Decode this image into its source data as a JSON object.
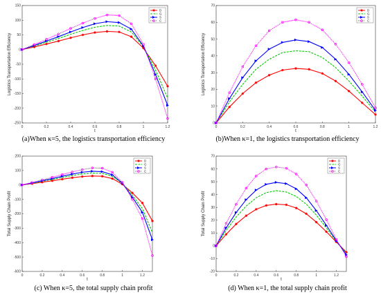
{
  "chart_data": [
    {
      "type": "line",
      "caption": "(a)When κ=5, the logistics transportation efficiency",
      "xlabel": "t",
      "ylabel": "Logistics Transportation Efficiency",
      "xlim": [
        0,
        1.2
      ],
      "ylim": [
        -250,
        150
      ],
      "xticks": [
        "0",
        "0.2",
        "0.4",
        "0.6",
        "0.8",
        "1",
        "1.2"
      ],
      "yticks": [
        "150",
        "100",
        "50",
        "0",
        "-50",
        "-100",
        "-150",
        "-200",
        "-250"
      ],
      "legend": [
        "D",
        "G",
        "S",
        "C"
      ],
      "legend_position": "top-right",
      "series": [
        {
          "name": "D",
          "color": "#ff0000",
          "marker": "star",
          "x": [
            0,
            0.1,
            0.2,
            0.3,
            0.4,
            0.5,
            0.6,
            0.7,
            0.8,
            0.9,
            1.0,
            1.1,
            1.2
          ],
          "y": [
            0,
            9,
            19,
            29,
            40,
            50,
            58,
            62,
            60,
            44,
            5,
            -55,
            -125
          ]
        },
        {
          "name": "G",
          "color": "#00cc00",
          "marker": "dash",
          "x": [
            0,
            0.1,
            0.2,
            0.3,
            0.4,
            0.5,
            0.6,
            0.7,
            0.8,
            0.9,
            1.0,
            1.1,
            1.2
          ],
          "y": [
            0,
            12,
            25,
            38,
            52,
            65,
            76,
            82,
            80,
            60,
            10,
            -70,
            -165
          ]
        },
        {
          "name": "S",
          "color": "#0000ff",
          "marker": "triangle",
          "x": [
            0,
            0.1,
            0.2,
            0.3,
            0.4,
            0.5,
            0.6,
            0.7,
            0.8,
            0.9,
            1.0,
            1.1,
            1.2
          ],
          "y": [
            0,
            14,
            29,
            44,
            60,
            75,
            88,
            95,
            92,
            70,
            12,
            -85,
            -190
          ]
        },
        {
          "name": "C",
          "color": "#ff00ff",
          "marker": "circle",
          "x": [
            0,
            0.1,
            0.2,
            0.3,
            0.4,
            0.5,
            0.6,
            0.7,
            0.8,
            0.9,
            1.0,
            1.1,
            1.2
          ],
          "y": [
            0,
            17,
            35,
            53,
            72,
            90,
            106,
            118,
            116,
            88,
            18,
            -100,
            -235
          ]
        }
      ]
    },
    {
      "type": "line",
      "caption": "(b)When κ=1, the logistics transportation efficiency",
      "xlabel": "t",
      "ylabel": "Logistics Transportation Efficiency",
      "xlim": [
        0,
        1.2
      ],
      "ylim": [
        0,
        70
      ],
      "xticks": [
        "0",
        "0.2",
        "0.4",
        "0.6",
        "0.8",
        "1",
        "1.2"
      ],
      "yticks": [
        "70",
        "60",
        "50",
        "40",
        "30",
        "20",
        "10",
        "0"
      ],
      "legend": [
        "D",
        "G",
        "S",
        "C"
      ],
      "legend_position": "top-right",
      "series": [
        {
          "name": "D",
          "color": "#ff0000",
          "marker": "star",
          "x": [
            0,
            0.1,
            0.2,
            0.3,
            0.4,
            0.5,
            0.6,
            0.7,
            0.8,
            0.9,
            1.0,
            1.1,
            1.2
          ],
          "y": [
            0,
            9.5,
            17.5,
            24,
            28.5,
            31.5,
            32.5,
            32,
            29.5,
            25,
            19,
            12,
            5
          ]
        },
        {
          "name": "G",
          "color": "#00cc00",
          "marker": "dash",
          "x": [
            0,
            0.1,
            0.2,
            0.3,
            0.4,
            0.5,
            0.6,
            0.7,
            0.8,
            0.9,
            1.0,
            1.1,
            1.2
          ],
          "y": [
            0,
            12.5,
            23,
            32,
            38,
            42,
            43,
            42.5,
            39,
            33,
            25,
            16,
            6.5
          ]
        },
        {
          "name": "S",
          "color": "#0000ff",
          "marker": "triangle",
          "x": [
            0,
            0.1,
            0.2,
            0.3,
            0.4,
            0.5,
            0.6,
            0.7,
            0.8,
            0.9,
            1.0,
            1.1,
            1.2
          ],
          "y": [
            0,
            14.5,
            27,
            37,
            44,
            48,
            49.5,
            48.5,
            45,
            38,
            29,
            18.5,
            7.5
          ]
        },
        {
          "name": "C",
          "color": "#ff00ff",
          "marker": "circle",
          "x": [
            0,
            0.1,
            0.2,
            0.3,
            0.4,
            0.5,
            0.6,
            0.7,
            0.8,
            0.9,
            1.0,
            1.1,
            1.2
          ],
          "y": [
            0,
            18,
            33.5,
            46,
            55,
            60,
            61.5,
            60,
            55.5,
            47,
            36,
            23,
            9
          ]
        }
      ]
    },
    {
      "type": "line",
      "caption": "(c) When κ=5, the total supply chain profit",
      "xlabel": "t",
      "ylabel": "Total Supply Chain Profit",
      "xlim": [
        0,
        1.3
      ],
      "ylim": [
        -600,
        200
      ],
      "xticks": [
        "0",
        "0.2",
        "0.4",
        "0.6",
        "0.8",
        "1",
        "1.2"
      ],
      "yticks": [
        "200",
        "100",
        "0",
        "-100",
        "-200",
        "-300",
        "-400",
        "-500",
        "-600"
      ],
      "legend": [
        "D",
        "G",
        "S",
        "C"
      ],
      "legend_position": "top-right",
      "series": [
        {
          "name": "D",
          "color": "#ff0000",
          "marker": "star",
          "x": [
            0,
            0.1,
            0.2,
            0.3,
            0.4,
            0.5,
            0.6,
            0.7,
            0.8,
            0.9,
            1.0,
            1.1,
            1.2,
            1.3
          ],
          "y": [
            0,
            9,
            19,
            29,
            40,
            50,
            58,
            62,
            60,
            44,
            5,
            -55,
            -125,
            -250
          ]
        },
        {
          "name": "G",
          "color": "#00cc00",
          "marker": "dash",
          "x": [
            0,
            0.1,
            0.2,
            0.3,
            0.4,
            0.5,
            0.6,
            0.7,
            0.8,
            0.9,
            1.0,
            1.1,
            1.2,
            1.3
          ],
          "y": [
            0,
            12,
            25,
            38,
            52,
            65,
            76,
            82,
            80,
            60,
            10,
            -70,
            -165,
            -330
          ]
        },
        {
          "name": "S",
          "color": "#0000ff",
          "marker": "triangle",
          "x": [
            0,
            0.1,
            0.2,
            0.3,
            0.4,
            0.5,
            0.6,
            0.7,
            0.8,
            0.9,
            1.0,
            1.1,
            1.2,
            1.3
          ],
          "y": [
            0,
            14,
            29,
            44,
            60,
            75,
            88,
            95,
            92,
            70,
            12,
            -85,
            -190,
            -380
          ]
        },
        {
          "name": "C",
          "color": "#ff00ff",
          "marker": "circle",
          "x": [
            0,
            0.1,
            0.2,
            0.3,
            0.4,
            0.5,
            0.6,
            0.7,
            0.8,
            0.9,
            1.0,
            1.1,
            1.2,
            1.3
          ],
          "y": [
            0,
            17,
            35,
            53,
            72,
            90,
            106,
            118,
            116,
            88,
            18,
            -100,
            -235,
            -490
          ]
        }
      ]
    },
    {
      "type": "line",
      "caption": "(d) When κ=1, the total supply chain profit",
      "xlabel": "t",
      "ylabel": "Total Supply Chain Profit",
      "xlim": [
        0,
        1.3
      ],
      "ylim": [
        -20,
        70
      ],
      "xticks": [
        "0",
        "0.2",
        "0.4",
        "0.6",
        "0.8",
        "1",
        "1.2"
      ],
      "yticks": [
        "70",
        "60",
        "50",
        "40",
        "30",
        "20",
        "10",
        "0",
        "-10",
        "-20"
      ],
      "legend": [
        "D",
        "G",
        "S",
        "C"
      ],
      "legend_position": "top-right",
      "series": [
        {
          "name": "D",
          "color": "#ff0000",
          "marker": "star",
          "x": [
            0,
            0.1,
            0.2,
            0.3,
            0.4,
            0.5,
            0.6,
            0.7,
            0.8,
            0.9,
            1.0,
            1.1,
            1.2,
            1.3
          ],
          "y": [
            0,
            9,
            17,
            23.5,
            28.5,
            31.5,
            32.5,
            32,
            29.5,
            25,
            18.5,
            11,
            3,
            -5
          ]
        },
        {
          "name": "G",
          "color": "#00cc00",
          "marker": "dash",
          "x": [
            0,
            0.1,
            0.2,
            0.3,
            0.4,
            0.5,
            0.6,
            0.7,
            0.8,
            0.9,
            1.0,
            1.1,
            1.2,
            1.3
          ],
          "y": [
            0,
            12,
            22.5,
            31,
            37.5,
            41.5,
            43,
            42,
            38.5,
            32.5,
            24,
            14,
            3.5,
            -6
          ]
        },
        {
          "name": "S",
          "color": "#0000ff",
          "marker": "triangle",
          "x": [
            0,
            0.1,
            0.2,
            0.3,
            0.4,
            0.5,
            0.6,
            0.7,
            0.8,
            0.9,
            1.0,
            1.1,
            1.2,
            1.3
          ],
          "y": [
            0,
            14,
            26,
            36,
            43.5,
            48,
            49.5,
            48.5,
            44.5,
            37.5,
            27.5,
            16,
            4,
            -7
          ]
        },
        {
          "name": "C",
          "color": "#ff00ff",
          "marker": "circle",
          "x": [
            0,
            0.1,
            0.2,
            0.3,
            0.4,
            0.5,
            0.6,
            0.7,
            0.8,
            0.9,
            1.0,
            1.1,
            1.2,
            1.3
          ],
          "y": [
            0,
            17.5,
            32.5,
            45,
            54.5,
            60,
            61.5,
            60.5,
            56,
            47.5,
            35,
            20.5,
            5,
            -8.5
          ]
        }
      ]
    }
  ]
}
